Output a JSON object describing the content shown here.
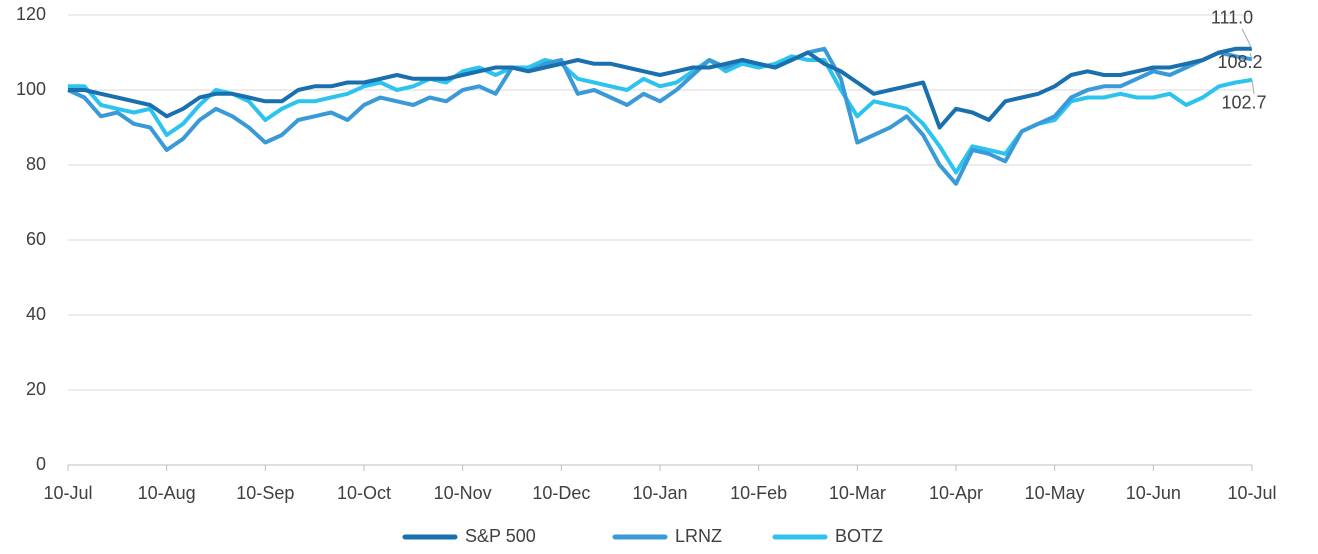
{
  "chart_data": {
    "type": "line",
    "categories": [
      "10-Jul",
      null,
      null,
      null,
      null,
      null,
      "10-Aug",
      null,
      null,
      null,
      null,
      null,
      "10-Sep",
      null,
      null,
      null,
      null,
      null,
      "10-Oct",
      null,
      null,
      null,
      null,
      null,
      "10-Nov",
      null,
      null,
      null,
      null,
      null,
      "10-Dec",
      null,
      null,
      null,
      null,
      null,
      "10-Jan",
      null,
      null,
      null,
      null,
      null,
      "10-Feb",
      null,
      null,
      null,
      null,
      null,
      "10-Mar",
      null,
      null,
      null,
      null,
      null,
      "10-Apr",
      null,
      null,
      null,
      null,
      null,
      "10-May",
      null,
      null,
      null,
      null,
      null,
      "10-Jun",
      null,
      null,
      null,
      null,
      null,
      "10-Jul"
    ],
    "series": [
      {
        "name": "S&P 500",
        "color": "#1a6fae",
        "values": [
          100,
          100,
          99,
          98,
          97,
          96,
          93,
          95,
          98,
          99,
          99,
          98,
          97,
          97,
          100,
          101,
          101,
          102,
          102,
          103,
          104,
          103,
          103,
          103,
          104,
          105,
          106,
          106,
          105,
          106,
          107,
          108,
          107,
          107,
          106,
          105,
          104,
          105,
          106,
          106,
          107,
          108,
          107,
          106,
          108,
          110,
          107,
          105,
          102,
          99,
          100,
          101,
          102,
          90,
          95,
          94,
          92,
          97,
          98,
          99,
          101,
          104,
          105,
          104,
          104,
          105,
          106,
          106,
          107,
          108,
          110,
          111,
          111.0
        ],
        "value_labels": [
          null,
          null,
          null,
          null,
          null,
          null,
          null,
          null,
          null,
          null,
          null,
          null,
          null,
          null,
          null,
          null,
          null,
          null,
          null,
          null,
          null,
          null,
          null,
          null,
          null,
          null,
          null,
          null,
          null,
          null,
          null,
          null,
          null,
          null,
          null,
          null,
          null,
          null,
          null,
          null,
          null,
          null,
          null,
          null,
          null,
          null,
          null,
          null,
          null,
          null,
          null,
          null,
          null,
          null,
          null,
          null,
          null,
          null,
          null,
          null,
          null,
          null,
          null,
          null,
          null,
          null,
          null,
          null,
          null,
          null,
          null,
          null,
          "111.0"
        ]
      },
      {
        "name": "LRNZ",
        "color": "#3a9ad8",
        "values": [
          100,
          98,
          93,
          94,
          91,
          90,
          84,
          87,
          92,
          95,
          93,
          90,
          86,
          88,
          92,
          93,
          94,
          92,
          96,
          98,
          97,
          96,
          98,
          97,
          100,
          101,
          99,
          106,
          105,
          107,
          108,
          99,
          100,
          98,
          96,
          99,
          97,
          100,
          104,
          108,
          106,
          108,
          107,
          106,
          108,
          110,
          111,
          103,
          86,
          88,
          90,
          93,
          88,
          80,
          75,
          84,
          83,
          81,
          89,
          91,
          93,
          98,
          100,
          101,
          101,
          103,
          105,
          104,
          106,
          108,
          110,
          109,
          108.2
        ],
        "value_labels": [
          null,
          null,
          null,
          null,
          null,
          null,
          null,
          null,
          null,
          null,
          null,
          null,
          null,
          null,
          null,
          null,
          null,
          null,
          null,
          null,
          null,
          null,
          null,
          null,
          null,
          null,
          null,
          null,
          null,
          null,
          null,
          null,
          null,
          null,
          null,
          null,
          null,
          null,
          null,
          null,
          null,
          null,
          null,
          null,
          null,
          null,
          null,
          null,
          null,
          null,
          null,
          null,
          null,
          null,
          null,
          null,
          null,
          null,
          null,
          null,
          null,
          null,
          null,
          null,
          null,
          null,
          null,
          null,
          null,
          null,
          null,
          null,
          "108.2"
        ]
      },
      {
        "name": "BOTZ",
        "color": "#2cc3ef",
        "values": [
          101,
          101,
          96,
          95,
          94,
          95,
          88,
          91,
          96,
          100,
          99,
          97,
          92,
          95,
          97,
          97,
          98,
          99,
          101,
          102,
          100,
          101,
          103,
          102,
          105,
          106,
          104,
          106,
          106,
          108,
          107,
          103,
          102,
          101,
          100,
          103,
          101,
          102,
          105,
          108,
          105,
          107,
          106,
          107,
          109,
          108,
          108,
          100,
          93,
          97,
          96,
          95,
          91,
          85,
          78,
          85,
          84,
          83,
          89,
          91,
          92,
          97,
          98,
          98,
          99,
          98,
          98,
          99,
          96,
          98,
          101,
          102,
          102.7
        ],
        "value_labels": [
          null,
          null,
          null,
          null,
          null,
          null,
          null,
          null,
          null,
          null,
          null,
          null,
          null,
          null,
          null,
          null,
          null,
          null,
          null,
          null,
          null,
          null,
          null,
          null,
          null,
          null,
          null,
          null,
          null,
          null,
          null,
          null,
          null,
          null,
          null,
          null,
          null,
          null,
          null,
          null,
          null,
          null,
          null,
          null,
          null,
          null,
          null,
          null,
          null,
          null,
          null,
          null,
          null,
          null,
          null,
          null,
          null,
          null,
          null,
          null,
          null,
          null,
          null,
          null,
          null,
          null,
          null,
          null,
          null,
          null,
          null,
          null,
          "102.7"
        ]
      }
    ],
    "ylim": [
      0,
      120
    ],
    "yticks": [
      0,
      20,
      40,
      60,
      80,
      100,
      120
    ],
    "grid": true,
    "legend": "bottom"
  }
}
